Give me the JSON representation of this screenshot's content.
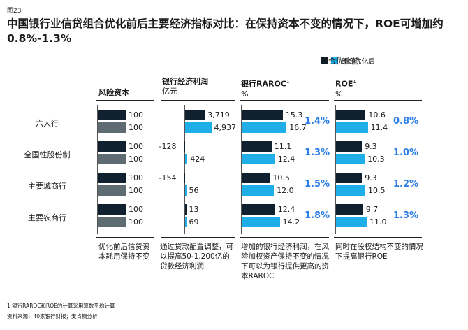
{
  "figure_label": "图23",
  "title": "中国银行业信贷组合优化前后主要经济指标对比：在保持资本不变的情况下，ROE可增加约0.8%-1.3%",
  "legend": {
    "before": "组合优化前",
    "after": "组合优化后"
  },
  "colors": {
    "before": "#10202e",
    "after": "#1faee8",
    "capital_after": "#5e6b73"
  },
  "columns": {
    "capital": {
      "title": "风险资本",
      "unit": ""
    },
    "profit": {
      "title": "银行经济利润",
      "unit": "亿元"
    },
    "raroc": {
      "title": "银行RAROC",
      "sup": "1",
      "unit": "%"
    },
    "roe": {
      "title": "ROE",
      "sup": "1",
      "unit": "%"
    }
  },
  "chart_data": {
    "type": "bar",
    "title": "中国银行业信贷组合优化前后主要经济指标对比：在保持资本不变的情况下，ROE可增加约0.8%-1.3%",
    "categories": [
      "六大行",
      "全国性股份制",
      "主要城商行",
      "主要农商行"
    ],
    "panels": [
      {
        "name": "风险资本",
        "series": [
          {
            "name": "组合优化前",
            "values": [
              100,
              100,
              100,
              100
            ]
          },
          {
            "name": "组合优化后",
            "values": [
              100,
              100,
              100,
              100
            ]
          }
        ]
      },
      {
        "name": "银行经济利润",
        "unit": "亿元",
        "series": [
          {
            "name": "组合优化前",
            "values": [
              3719,
              -128,
              -154,
              13
            ]
          },
          {
            "name": "组合优化后",
            "values": [
              4937,
              424,
              56,
              69
            ]
          }
        ]
      },
      {
        "name": "银行RAROC",
        "unit": "%",
        "series": [
          {
            "name": "组合优化前",
            "values": [
              15.3,
              11.1,
              10.5,
              12.4
            ]
          },
          {
            "name": "组合优化后",
            "values": [
              16.7,
              12.4,
              12.0,
              14.2
            ]
          }
        ],
        "increase": [
          "1.4%",
          "1.3%",
          "1.5%",
          "1.8%"
        ]
      },
      {
        "name": "ROE",
        "unit": "%",
        "series": [
          {
            "name": "组合优化前",
            "values": [
              10.6,
              9.3,
              9.3,
              9.7
            ]
          },
          {
            "name": "组合优化后",
            "values": [
              11.4,
              10.3,
              10.5,
              11.0
            ]
          }
        ],
        "increase": [
          "0.8%",
          "1.0%",
          "1.2%",
          "1.3%"
        ]
      }
    ]
  },
  "profit_labels": {
    "before": [
      "3,719",
      "-128",
      "-154",
      "13"
    ],
    "after": [
      "4,937",
      "424",
      "56",
      "69"
    ]
  },
  "raroc_labels": {
    "before": [
      "15.3",
      "11.1",
      "10.5",
      "12.4"
    ],
    "after": [
      "16.7",
      "12.4",
      "12.0",
      "14.2"
    ]
  },
  "roe_labels": {
    "before": [
      "10.6",
      "9.3",
      "9.3",
      "9.7"
    ],
    "after": [
      "11.4",
      "10.3",
      "10.5",
      "11.0"
    ]
  },
  "notes": {
    "capital": "优化前后信贷资本耗用保持不变",
    "profit": "通过贷款配置调整，可以提高50-1,200亿的贷款经济利润",
    "raroc": "增加的银行经济利润，在风险加权资产保持不变的情况下可以为银行提供更高的资本RAROC",
    "roe": "同时在股权结构不变的情况下提高银行ROE"
  },
  "footnotes": [
    "1 银行RAROC和ROE的计算采用算数平均计算",
    "资料来源：40家银行财报；麦肯锡分析"
  ]
}
